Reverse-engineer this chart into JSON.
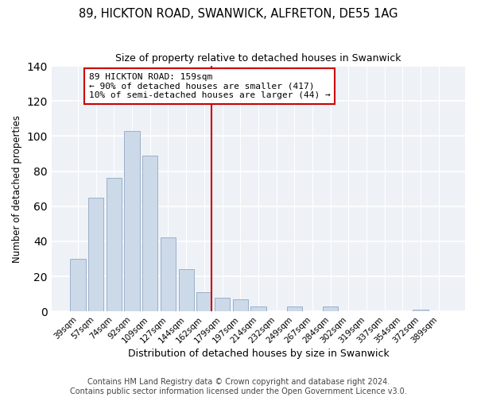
{
  "title": "89, HICKTON ROAD, SWANWICK, ALFRETON, DE55 1AG",
  "subtitle": "Size of property relative to detached houses in Swanwick",
  "xlabel": "Distribution of detached houses by size in Swanwick",
  "ylabel": "Number of detached properties",
  "bar_labels": [
    "39sqm",
    "57sqm",
    "74sqm",
    "92sqm",
    "109sqm",
    "127sqm",
    "144sqm",
    "162sqm",
    "179sqm",
    "197sqm",
    "214sqm",
    "232sqm",
    "249sqm",
    "267sqm",
    "284sqm",
    "302sqm",
    "319sqm",
    "337sqm",
    "354sqm",
    "372sqm",
    "389sqm"
  ],
  "bar_values": [
    30,
    65,
    76,
    103,
    89,
    42,
    24,
    11,
    8,
    7,
    3,
    0,
    3,
    0,
    3,
    0,
    0,
    0,
    0,
    1,
    0
  ],
  "bar_color": "#ccd9e8",
  "bar_edge_color": "#9ab0c8",
  "vline_color": "#cc0000",
  "annotation_line1": "89 HICKTON ROAD: 159sqm",
  "annotation_line2": "← 90% of detached houses are smaller (417)",
  "annotation_line3": "10% of semi-detached houses are larger (44) →",
  "annotation_box_color": "#ffffff",
  "annotation_box_edge": "#cc0000",
  "ylim": [
    0,
    140
  ],
  "yticks": [
    0,
    20,
    40,
    60,
    80,
    100,
    120,
    140
  ],
  "footer_line1": "Contains HM Land Registry data © Crown copyright and database right 2024.",
  "footer_line2": "Contains public sector information licensed under the Open Government Licence v3.0.",
  "background_color": "#ffffff",
  "plot_bg_color": "#eef2f7",
  "grid_color": "#ffffff",
  "title_fontsize": 10.5,
  "xlabel_fontsize": 9,
  "ylabel_fontsize": 8.5,
  "tick_fontsize": 7.5,
  "footer_fontsize": 7,
  "annotation_fontsize": 8
}
